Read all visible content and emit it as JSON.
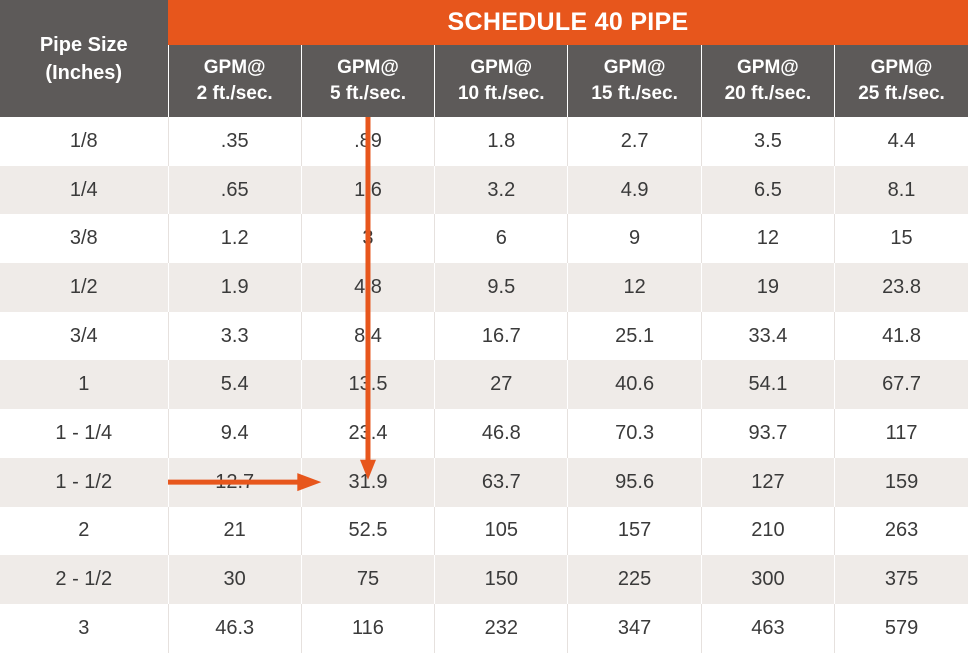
{
  "colors": {
    "accent": "#e7561c",
    "header_bg": "#5d5a59",
    "stripe_bg": "#efebe8",
    "text": "#3a3a3a"
  },
  "banner": "SCHEDULE 40 PIPE",
  "pipe_size_header": [
    "Pipe Size",
    "(Inches)"
  ],
  "gpm_headers": [
    [
      "GPM@",
      "2 ft./sec."
    ],
    [
      "GPM@",
      "5 ft./sec."
    ],
    [
      "GPM@",
      "10 ft./sec."
    ],
    [
      "GPM@",
      "15 ft./sec."
    ],
    [
      "GPM@",
      "20 ft./sec."
    ],
    [
      "GPM@",
      "25 ft./sec."
    ]
  ],
  "rows": [
    [
      "1/8",
      ".35",
      ".89",
      "1.8",
      "2.7",
      "3.5",
      "4.4"
    ],
    [
      "1/4",
      ".65",
      "1.6",
      "3.2",
      "4.9",
      "6.5",
      "8.1"
    ],
    [
      "3/8",
      "1.2",
      "3",
      "6",
      "9",
      "12",
      "15"
    ],
    [
      "1/2",
      "1.9",
      "4.8",
      "9.5",
      "12",
      "19",
      "23.8"
    ],
    [
      "3/4",
      "3.3",
      "8.4",
      "16.7",
      "25.1",
      "33.4",
      "41.8"
    ],
    [
      "1",
      "5.4",
      "13.5",
      "27",
      "40.6",
      "54.1",
      "67.7"
    ],
    [
      "1 - 1/4",
      "9.4",
      "23.4",
      "46.8",
      "70.3",
      "93.7",
      "117"
    ],
    [
      "1 - 1/2",
      "12.7",
      "31.9",
      "63.7",
      "95.6",
      "127",
      "159"
    ],
    [
      "2",
      "21",
      "52.5",
      "105",
      "157",
      "210",
      "263"
    ],
    [
      "2 - 1/2",
      "30",
      "75",
      "150",
      "225",
      "300",
      "375"
    ],
    [
      "3",
      "46.3",
      "116",
      "232",
      "347",
      "463",
      "579"
    ]
  ],
  "highlight": {
    "row": 7,
    "column": 2
  },
  "chart_data": {
    "type": "table",
    "title": "SCHEDULE 40 PIPE",
    "columns": [
      "Pipe Size (Inches)",
      "GPM@ 2 ft./sec.",
      "GPM@ 5 ft./sec.",
      "GPM@ 10 ft./sec.",
      "GPM@ 15 ft./sec.",
      "GPM@ 20 ft./sec.",
      "GPM@ 25 ft./sec."
    ],
    "rows": [
      [
        "1/8",
        ".35",
        ".89",
        "1.8",
        "2.7",
        "3.5",
        "4.4"
      ],
      [
        "1/4",
        ".65",
        "1.6",
        "3.2",
        "4.9",
        "6.5",
        "8.1"
      ],
      [
        "3/8",
        "1.2",
        "3",
        "6",
        "9",
        "12",
        "15"
      ],
      [
        "1/2",
        "1.9",
        "4.8",
        "9.5",
        "12",
        "19",
        "23.8"
      ],
      [
        "3/4",
        "3.3",
        "8.4",
        "16.7",
        "25.1",
        "33.4",
        "41.8"
      ],
      [
        "1",
        "5.4",
        "13.5",
        "27",
        "40.6",
        "54.1",
        "67.7"
      ],
      [
        "1 - 1/4",
        "9.4",
        "23.4",
        "46.8",
        "70.3",
        "93.7",
        "117"
      ],
      [
        "1 - 1/2",
        "12.7",
        "31.9",
        "63.7",
        "95.6",
        "127",
        "159"
      ],
      [
        "2",
        "21",
        "52.5",
        "105",
        "157",
        "210",
        "263"
      ],
      [
        "2 - 1/2",
        "30",
        "75",
        "150",
        "225",
        "300",
        "375"
      ],
      [
        "3",
        "46.3",
        "116",
        "232",
        "347",
        "463",
        "579"
      ]
    ]
  }
}
